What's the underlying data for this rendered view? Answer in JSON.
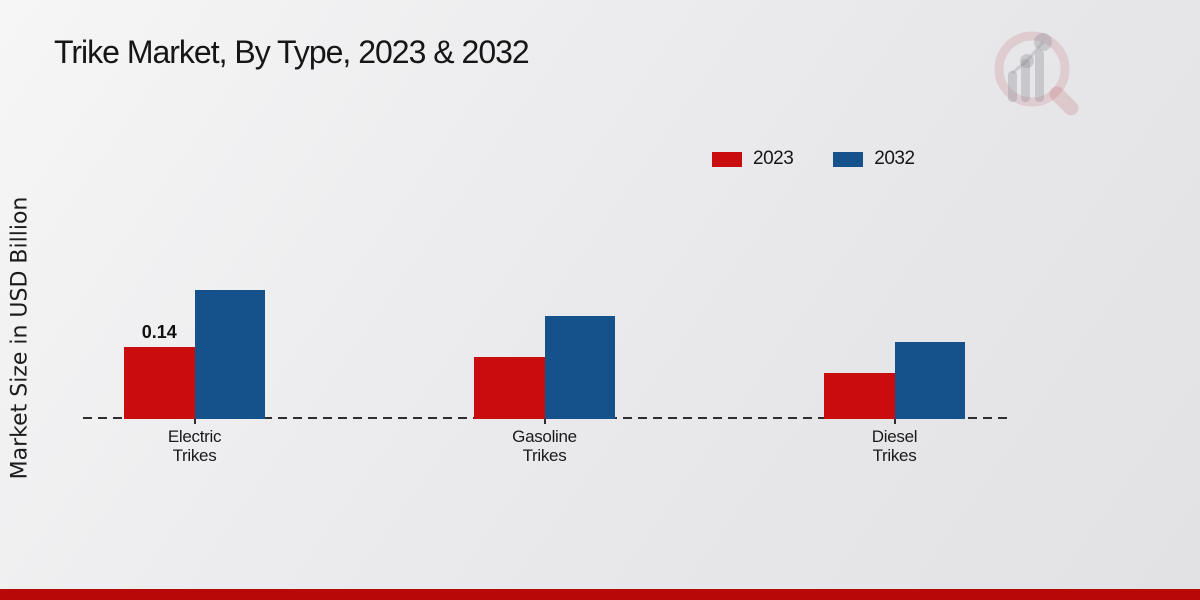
{
  "chart_data": {
    "type": "bar",
    "title": "Trike Market, By Type, 2023 & 2032",
    "ylabel": "Market Size in USD Billion",
    "categories": [
      "Electric Trikes",
      "Gasoline Trikes",
      "Diesel Trikes"
    ],
    "series": [
      {
        "name": "2023",
        "color": "#c90d0f",
        "values": [
          0.14,
          0.12,
          0.09
        ]
      },
      {
        "name": "2032",
        "color": "#15528c",
        "values": [
          0.25,
          0.2,
          0.15
        ]
      }
    ],
    "data_labels": [
      {
        "series_index": 0,
        "category_index": 0,
        "text": "0.14"
      }
    ],
    "legend_position": "top-right",
    "grid": false,
    "axis_style": "dashed-baseline",
    "ylim": [
      0,
      0.3
    ]
  },
  "branding": {
    "watermark_icon": "magnifier-bar-chart-logo",
    "footer_color": "#b80808"
  }
}
